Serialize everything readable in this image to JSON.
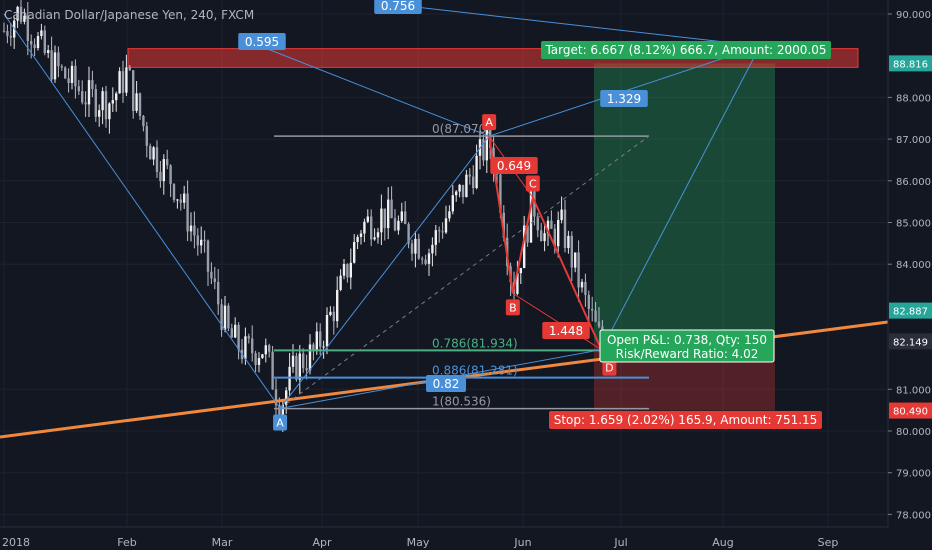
{
  "header": {
    "title": "Canadian Dollar/Japanese Yen, 240, FXCM"
  },
  "chart_data": {
    "type": "candlestick",
    "title": "Canadian Dollar/Japanese Yen, 240, FXCM",
    "x_ticks": [
      "2018",
      "Feb",
      "Mar",
      "Apr",
      "May",
      "Jun",
      "Jul",
      "Aug",
      "Sep"
    ],
    "y_ticks": [
      "90.000",
      "88.000",
      "87.000",
      "86.000",
      "85.000",
      "84.000",
      "81.000",
      "80.000",
      "79.000",
      "78.000"
    ],
    "ylim": [
      77.6,
      90.4
    ],
    "price_labels": [
      {
        "value": 88.816,
        "text": "88.816",
        "color": "#26a69a"
      },
      {
        "value": 82.887,
        "text": "82.887",
        "color": "#26a69a"
      },
      {
        "value": 82.149,
        "text": "82.149",
        "color": "#2a2e39"
      },
      {
        "value": 80.49,
        "text": "80.490",
        "color": "#e53935"
      }
    ],
    "fib_levels": [
      {
        "value": 87.07,
        "label": "0(87.070)",
        "color": "#9598a1"
      },
      {
        "value": 81.934,
        "label": "0.786(81.934)",
        "color": "#4caf82"
      },
      {
        "value": 81.281,
        "label": "0.886(81.281)",
        "color": "#4a90d9"
      },
      {
        "value": 80.536,
        "label": "1(80.536)",
        "color": "#9598a1"
      }
    ],
    "harmonic_points": [
      {
        "label": "A",
        "date": "2018-03-19",
        "price": 80.54,
        "color": "#4a90d9"
      },
      {
        "label": "A",
        "date": "2018-05-22",
        "price": 87.07,
        "color": "#e53935"
      },
      {
        "label": "B",
        "date": "2018-05-29",
        "price": 83.3,
        "color": "#e53935"
      },
      {
        "label": "C",
        "date": "2018-06-04",
        "price": 85.6,
        "color": "#e53935"
      },
      {
        "label": "D",
        "date": "2018-06-25",
        "price": 81.95,
        "color": "#e53935"
      }
    ],
    "ratios": [
      {
        "text": "0.756",
        "color": "#4a90d9"
      },
      {
        "text": "0.595",
        "color": "#4a90d9"
      },
      {
        "text": "1.329",
        "color": "#4a90d9"
      },
      {
        "text": "0.82",
        "color": "#4a90d9"
      },
      {
        "text": "0.649",
        "color": "#e53935"
      },
      {
        "text": "1.448",
        "color": "#e53935"
      }
    ],
    "position": {
      "target": "Target: 6.667 (8.12%) 666.7, Amount: 2000.05",
      "open_pnl": "Open P&L: 0.738, Qty: 150",
      "risk_reward": "Risk/Reward Ratio: 4.02",
      "stop": "Stop: 1.659 (2.02%) 165.9, Amount: 751.15",
      "entry": 82.149,
      "target_price": 88.816,
      "stop_price": 80.49
    },
    "resistance_zone": [
      88.72,
      89.17
    ]
  }
}
